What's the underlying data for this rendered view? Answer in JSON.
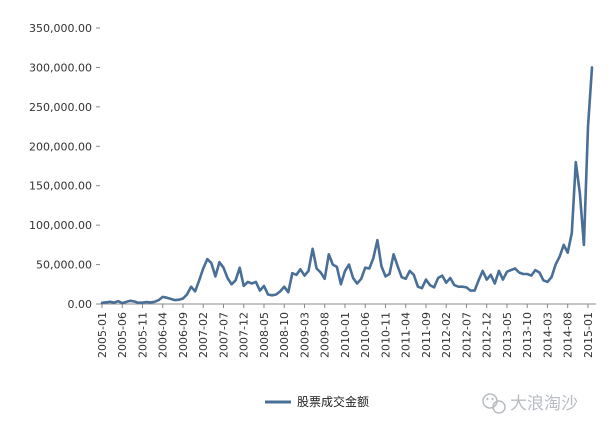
{
  "chart_data": {
    "type": "line",
    "title": "",
    "xlabel": "",
    "ylabel": "",
    "ylim": [
      0,
      350000
    ],
    "y_ticks": [
      "350,000.00",
      "300,000.00",
      "250,000.00",
      "200,000.00",
      "150,000.00",
      "100,000.00",
      "50,000.00",
      "0.00"
    ],
    "y_tick_values": [
      350000,
      300000,
      250000,
      200000,
      150000,
      100000,
      50000,
      0
    ],
    "x_tick_labels": [
      "2005-01",
      "2005-06",
      "2005-11",
      "2006-04",
      "2006-09",
      "2007-02",
      "2007-07",
      "2007-12",
      "2008-05",
      "2008-10",
      "2009-03",
      "2009-08",
      "2010-01",
      "2010-06",
      "2010-11",
      "2011-04",
      "2011-09",
      "2012-02",
      "2012-07",
      "2012-12",
      "2013-05",
      "2013-10",
      "2014-03",
      "2014-08",
      "2015-01"
    ],
    "x_start": "2005-01",
    "grid": false,
    "legend_position": "bottom",
    "series": [
      {
        "name": "股票成交金额",
        "color": "#4a6f97",
        "values": [
          1500,
          2200,
          2800,
          1800,
          3500,
          1200,
          2600,
          4000,
          3200,
          1500,
          1800,
          2500,
          2000,
          2800,
          5000,
          9000,
          8000,
          6500,
          5000,
          5500,
          7000,
          12000,
          22000,
          16000,
          30000,
          45000,
          57000,
          52000,
          35000,
          53000,
          46000,
          33000,
          25000,
          30000,
          46000,
          23000,
          28000,
          26000,
          28000,
          17000,
          23000,
          12000,
          11000,
          12000,
          16000,
          22000,
          15000,
          39000,
          37000,
          44000,
          36000,
          42000,
          70000,
          45000,
          40000,
          32000,
          63000,
          50000,
          47000,
          25000,
          42000,
          50000,
          33000,
          26000,
          32000,
          46000,
          45000,
          58000,
          81000,
          48000,
          35000,
          38000,
          63000,
          48000,
          34000,
          32000,
          42000,
          37000,
          22000,
          20000,
          31000,
          24000,
          21000,
          33000,
          36000,
          27000,
          33000,
          24000,
          22000,
          22000,
          21000,
          17000,
          17000,
          30000,
          42000,
          31000,
          37000,
          26000,
          42000,
          31000,
          41000,
          43000,
          45000,
          40000,
          38000,
          38000,
          36000,
          43000,
          40000,
          30000,
          28000,
          34000,
          50000,
          60000,
          75000,
          65000,
          90000,
          180000,
          140000,
          75000,
          225000,
          300000
        ]
      }
    ]
  },
  "legend": {
    "label": "股票成交金额"
  },
  "watermark": {
    "text": "大浪淘沙",
    "icon": "wechat-bubble-icon"
  }
}
